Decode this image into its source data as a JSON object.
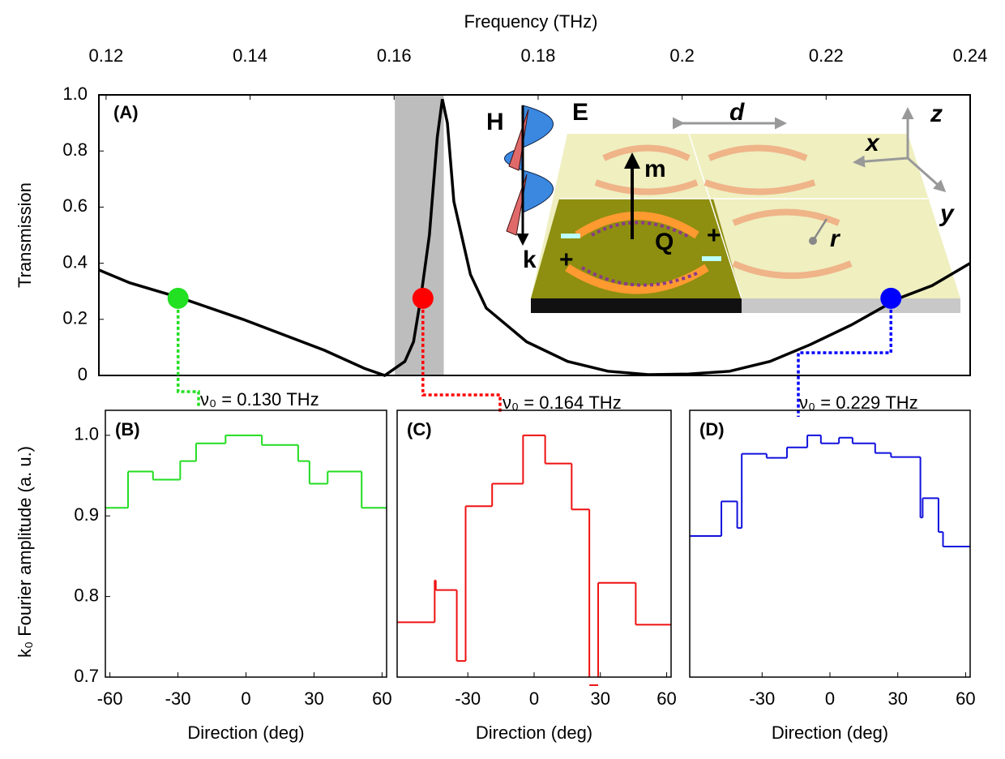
{
  "chart_data": [
    {
      "type": "line",
      "panel_label": "(A)",
      "xlabel": "Frequency (THz)",
      "ylabel": "Transmission",
      "x": [
        0.119,
        0.1233,
        0.1305,
        0.139,
        0.1503,
        0.1559,
        0.1587,
        0.1615,
        0.1627,
        0.1637,
        0.1649,
        0.166,
        0.1667,
        0.1674,
        0.1683,
        0.1706,
        0.1728,
        0.1784,
        0.1841,
        0.1897,
        0.1953,
        0.2009,
        0.2066,
        0.2122,
        0.2178,
        0.2235,
        0.2301,
        0.2347,
        0.24
      ],
      "values": [
        0.376,
        0.33,
        0.275,
        0.2,
        0.09,
        0.025,
        0.0,
        0.05,
        0.12,
        0.275,
        0.5,
        0.85,
        0.985,
        0.9,
        0.62,
        0.36,
        0.24,
        0.12,
        0.05,
        0.015,
        0.003,
        0.005,
        0.015,
        0.05,
        0.11,
        0.18,
        0.275,
        0.32,
        0.4
      ],
      "color": "#000000",
      "xlim": [
        0.119,
        0.24
      ],
      "xticks": [
        0.12,
        0.14,
        0.16,
        0.18,
        0.2,
        0.22,
        0.24
      ],
      "ylim": [
        0,
        1
      ],
      "yticks": [
        0,
        0.2,
        0.4,
        0.6,
        0.8,
        {
          "value": 1,
          "label": "1.0"
        }
      ],
      "shaded_range": [
        0.1601,
        0.1669
      ],
      "shade_color": "#bdbdbd",
      "markers": [
        {
          "x": 0.13,
          "y": 0.275,
          "color": "#22e022",
          "label": "ν₀ = 0.130 THz"
        },
        {
          "x": 0.164,
          "y": 0.275,
          "color": "#ff0000",
          "label": "ν₀ = 0.164 THz"
        },
        {
          "x": 0.229,
          "y": 0.275,
          "color": "#0000ff",
          "label": "ν₀ = 0.229 THz"
        }
      ],
      "annotations": [
        "H",
        "E",
        "k",
        "m",
        "Q",
        "d",
        "x",
        "y",
        "z",
        "r",
        "+",
        "+"
      ]
    },
    {
      "type": "step",
      "panel_label": "(B)",
      "xlabel": "Direction (deg)",
      "ylabel": "k₀ Fourier amplitude (a. u.)",
      "edges": [
        -62,
        -52,
        -41,
        -29,
        -22,
        -9,
        7,
        23,
        28,
        36,
        51,
        62
      ],
      "values": [
        0.91,
        0.955,
        0.945,
        0.968,
        0.99,
        1.0,
        0.988,
        0.968,
        0.94,
        0.955,
        0.91
      ],
      "color": "#22dd22",
      "xlim": [
        -62,
        62
      ],
      "xticks": [
        -60,
        -30,
        0,
        30,
        60
      ],
      "ylim": [
        0.7,
        1.031
      ],
      "yticks": [
        0.7,
        0.8,
        0.9,
        {
          "value": 1,
          "label": "1.0"
        }
      ]
    },
    {
      "type": "step",
      "panel_label": "(C)",
      "xlabel": "Direction (deg)",
      "edges": [
        -62,
        -45,
        -44.5,
        -35,
        -31,
        -19,
        -5,
        5,
        17,
        25,
        29,
        46,
        62
      ],
      "values": [
        0.768,
        0.82,
        0.808,
        0.72,
        0.912,
        0.94,
        1.0,
        0.965,
        0.908,
        0.69,
        0.817,
        0.765
      ],
      "color": "#ee1111",
      "xlim": [
        -62,
        62
      ],
      "xticks": [
        -30,
        0,
        30,
        60
      ],
      "ylim": [
        0.7,
        1.031
      ]
    },
    {
      "type": "step",
      "panel_label": "(D)",
      "xlabel": "Direction (deg)",
      "edges": [
        -62,
        -48,
        -41,
        -39,
        -28,
        -19,
        -10,
        -4,
        4,
        10,
        20,
        27,
        40,
        41,
        48,
        50,
        62
      ],
      "values": [
        0.875,
        0.918,
        0.885,
        0.977,
        0.972,
        0.985,
        1.0,
        0.99,
        0.997,
        0.99,
        0.978,
        0.973,
        0.898,
        0.922,
        0.88,
        0.862
      ],
      "color": "#1111dd",
      "xlim": [
        -62,
        62
      ],
      "xticks": [
        -30,
        0,
        30,
        60
      ],
      "ylim": [
        0.7,
        1.031
      ]
    }
  ]
}
